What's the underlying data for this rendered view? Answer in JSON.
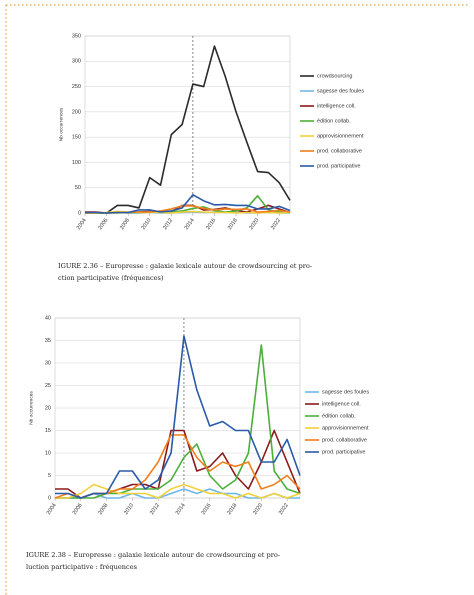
{
  "chart_data": [
    {
      "type": "line",
      "y_label": "Nb occurrences",
      "x": [
        2004,
        2005,
        2006,
        2007,
        2008,
        2009,
        2010,
        2011,
        2012,
        2013,
        2014,
        2015,
        2016,
        2017,
        2018,
        2019,
        2020,
        2021,
        2022,
        2023
      ],
      "xlim": [
        2004,
        2023
      ],
      "xticks": [
        2004,
        2006,
        2008,
        2010,
        2012,
        2014,
        2016,
        2018,
        2020,
        2022
      ],
      "ylim": [
        0,
        350
      ],
      "yticks": [
        0,
        50,
        100,
        150,
        200,
        250,
        300,
        350
      ],
      "grid": true,
      "marker_x": 2014,
      "legend": "right",
      "series": [
        {
          "name": "crowdsourcing",
          "color": "#2b2b2b",
          "values": [
            0,
            0,
            0,
            15,
            15,
            10,
            70,
            55,
            155,
            175,
            255,
            250,
            330,
            270,
            200,
            140,
            82,
            80,
            60,
            25
          ]
        },
        {
          "name": "sagesse des foules",
          "color": "#6fb7e6",
          "values": [
            0,
            0,
            0,
            1,
            0,
            0,
            1,
            0,
            0,
            1,
            2,
            1,
            2,
            1,
            1,
            0,
            0,
            1,
            0,
            0
          ]
        },
        {
          "name": "intelligence coll.",
          "color": "#8b1a1a",
          "values": [
            2,
            2,
            0,
            1,
            1,
            2,
            3,
            3,
            2,
            15,
            15,
            6,
            7,
            10,
            5,
            2,
            8,
            15,
            8,
            1
          ]
        },
        {
          "name": "édition collab.",
          "color": "#4caf3a",
          "values": [
            0,
            0,
            0,
            0,
            1,
            1,
            2,
            2,
            2,
            4,
            9,
            12,
            5,
            2,
            4,
            10,
            34,
            6,
            2,
            1
          ]
        },
        {
          "name": "approvisionnement",
          "color": "#f2d03b",
          "values": [
            0,
            0,
            1,
            3,
            2,
            1,
            1,
            1,
            0,
            2,
            3,
            2,
            1,
            1,
            0,
            1,
            0,
            1,
            0,
            1
          ]
        },
        {
          "name": "prod. collaborative",
          "color": "#f07f1e",
          "values": [
            0,
            1,
            0,
            1,
            1,
            2,
            2,
            4,
            8,
            14,
            14,
            9,
            6,
            8,
            7,
            8,
            2,
            3,
            5,
            2
          ]
        },
        {
          "name": "prod. participative",
          "color": "#2a5aa8",
          "values": [
            1,
            1,
            0,
            1,
            1,
            6,
            6,
            2,
            4,
            10,
            36,
            24,
            16,
            17,
            15,
            15,
            8,
            8,
            13,
            5
          ]
        }
      ]
    },
    {
      "type": "line",
      "y_label": "Nb occurrences",
      "x": [
        2004,
        2005,
        2006,
        2007,
        2008,
        2009,
        2010,
        2011,
        2012,
        2013,
        2014,
        2015,
        2016,
        2017,
        2018,
        2019,
        2020,
        2021,
        2022,
        2023
      ],
      "xlim": [
        2004,
        2023
      ],
      "xticks": [
        2004,
        2006,
        2008,
        2010,
        2012,
        2014,
        2016,
        2018,
        2020,
        2022
      ],
      "ylim": [
        0,
        40
      ],
      "yticks": [
        0,
        5,
        10,
        15,
        20,
        25,
        30,
        35,
        40
      ],
      "grid": true,
      "marker_x": 2014,
      "legend": "right",
      "series": [
        {
          "name": "sagesse des foules",
          "color": "#6fb7e6",
          "values": [
            0,
            0,
            0,
            1,
            0,
            0,
            1,
            0,
            0,
            1,
            2,
            1,
            2,
            1,
            1,
            0,
            0,
            1,
            0,
            0
          ]
        },
        {
          "name": "intelligence coll.",
          "color": "#8b1a1a",
          "values": [
            2,
            2,
            0,
            1,
            1,
            2,
            3,
            3,
            2,
            15,
            15,
            6,
            7,
            10,
            5,
            2,
            8,
            15,
            8,
            1
          ]
        },
        {
          "name": "édition collab.",
          "color": "#4caf3a",
          "values": [
            0,
            0,
            0,
            0,
            1,
            1,
            2,
            2,
            2,
            4,
            9,
            12,
            5,
            2,
            4,
            10,
            34,
            6,
            2,
            1
          ]
        },
        {
          "name": "approvisionnement",
          "color": "#f2d03b",
          "values": [
            0,
            0,
            1,
            3,
            2,
            1,
            1,
            1,
            0,
            2,
            3,
            2,
            1,
            1,
            0,
            1,
            0,
            1,
            0,
            1
          ]
        },
        {
          "name": "prod. collaborative",
          "color": "#f07f1e",
          "values": [
            0,
            1,
            0,
            1,
            1,
            2,
            2,
            4,
            8,
            14,
            14,
            9,
            6,
            8,
            7,
            8,
            2,
            3,
            5,
            2
          ]
        },
        {
          "name": "prod. participative",
          "color": "#2a5aa8",
          "values": [
            1,
            1,
            0,
            1,
            1,
            6,
            6,
            2,
            4,
            10,
            36,
            24,
            16,
            17,
            15,
            15,
            8,
            8,
            13,
            5
          ]
        }
      ]
    }
  ],
  "captions": [
    [
      "IGURE 2.36 – Europresse : galaxie lexicale autour de crowdsourcing et pro-",
      "ction participative (fréquences)"
    ],
    [
      "IGURE 2.38 – Europresse : galaxie lexicale autour de crowdsourcing et pro-",
      "luction participative : fréquences"
    ]
  ]
}
